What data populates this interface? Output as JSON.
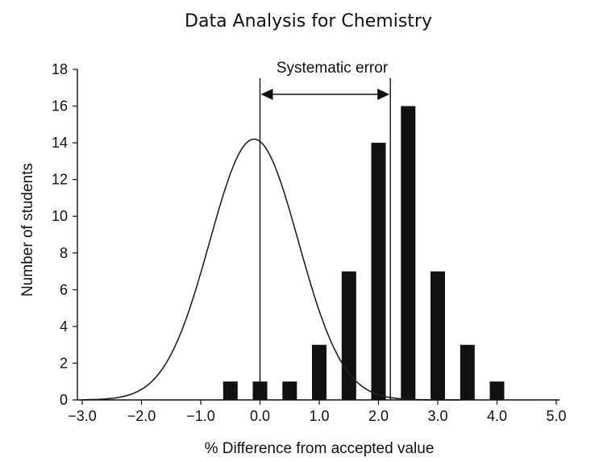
{
  "title": "Data Analysis for Chemistry",
  "chart_data": {
    "type": "bar",
    "xlabel": "% Difference from accepted value",
    "ylabel": "Number of students",
    "xlim": [
      -3.0,
      5.0
    ],
    "ylim": [
      0,
      18
    ],
    "x_ticks": [
      "−3.0",
      "−2.0",
      "−1.0",
      "0.0",
      "1.0",
      "2.0",
      "3.0",
      "4.0",
      "5.0"
    ],
    "y_ticks": [
      "0",
      "2",
      "4",
      "6",
      "8",
      "10",
      "12",
      "14",
      "16",
      "18"
    ],
    "bars": {
      "x": [
        -0.5,
        0.0,
        0.5,
        1.0,
        1.5,
        2.0,
        2.5,
        3.0,
        3.5,
        4.0
      ],
      "values": [
        1,
        1,
        1,
        3,
        7,
        14,
        16,
        7,
        3,
        1
      ]
    },
    "curve": {
      "type": "normal",
      "mean": -0.1,
      "peak": 14.2,
      "sd": 0.75
    },
    "reference_lines": {
      "accepted_value": 0.0,
      "experimental_mean": 2.2
    },
    "annotation": {
      "text": "Systematic error",
      "from": 0.0,
      "to": 2.2
    },
    "colors": {
      "bar": "#111111",
      "curve": "#222222",
      "axis": "#111111"
    }
  }
}
